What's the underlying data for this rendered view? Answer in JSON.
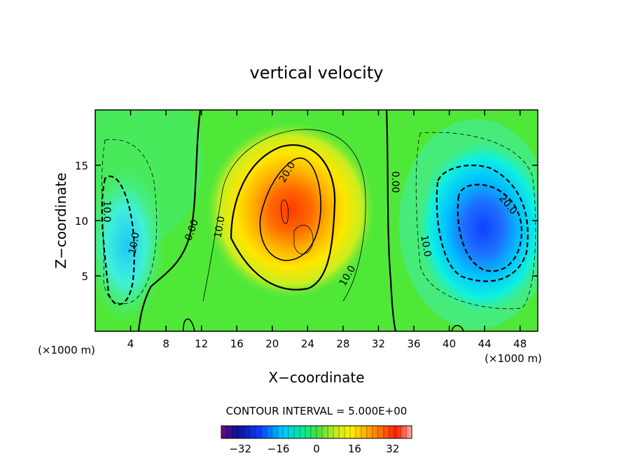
{
  "chart_data": {
    "type": "contour",
    "title": "vertical velocity",
    "xlabel": "X−coordinate",
    "ylabel": "Z−coordinate",
    "x_unit": "(×1000 m)",
    "z_unit": "(×1000 m)",
    "xlim": [
      0,
      50
    ],
    "ylim": [
      0,
      20
    ],
    "x_ticks": [
      4,
      8,
      12,
      16,
      20,
      24,
      28,
      32,
      36,
      40,
      44,
      48
    ],
    "y_ticks": [
      5,
      10,
      15
    ],
    "contour_interval_label": "CONTOUR INTERVAL = 5.000E+00",
    "contour_labels": [
      "0.00",
      "0.00",
      "10.0",
      "20.0",
      "10.0",
      "10.0",
      "10.0",
      "20.0",
      "10.0"
    ],
    "colorbar": {
      "range": [
        -40,
        40
      ],
      "ticks": [
        "−32",
        "−16",
        "0",
        "16",
        "32"
      ]
    },
    "features": [
      {
        "name": "updraft",
        "x_center": 22.5,
        "z_center": 10,
        "peak": 30
      },
      {
        "name": "downdraft",
        "x_center": 44,
        "z_center": 9,
        "peak": -30
      },
      {
        "name": "downdraft",
        "x_center": 3,
        "z_center": 7,
        "peak": -15
      }
    ]
  }
}
